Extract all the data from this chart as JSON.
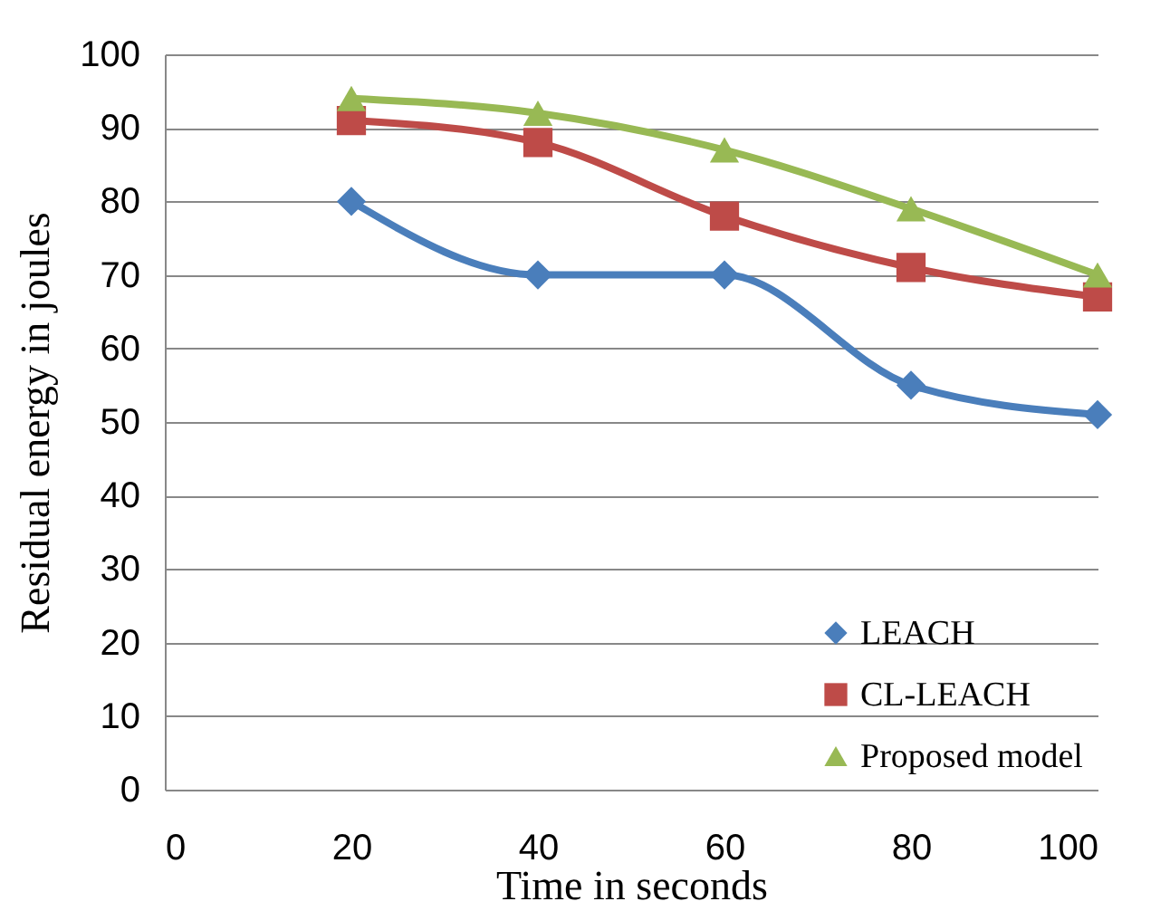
{
  "chart_data": {
    "type": "line",
    "xlabel": "Time in seconds",
    "ylabel": "Residual  energy   in joules",
    "x": [
      20,
      40,
      60,
      80,
      100
    ],
    "series": [
      {
        "name": "LEACH",
        "color": "#4a7ebb",
        "marker": "diamond",
        "values": [
          80,
          70,
          70,
          55,
          51
        ]
      },
      {
        "name": "CL-LEACH",
        "color": "#be4b48",
        "marker": "square",
        "values": [
          91,
          88,
          78,
          71,
          67
        ]
      },
      {
        "name": "Proposed model",
        "color": "#98b954",
        "marker": "triangle",
        "values": [
          94,
          92,
          87,
          79,
          70
        ]
      }
    ],
    "xlim": [
      0,
      100
    ],
    "xticks": [
      0,
      20,
      40,
      60,
      80,
      100
    ],
    "ylim": [
      0,
      100
    ],
    "yticks": [
      0,
      10,
      20,
      30,
      40,
      50,
      60,
      70,
      80,
      90,
      100
    ],
    "grid": "y",
    "legend": "bottom right",
    "line_style": "solid"
  }
}
